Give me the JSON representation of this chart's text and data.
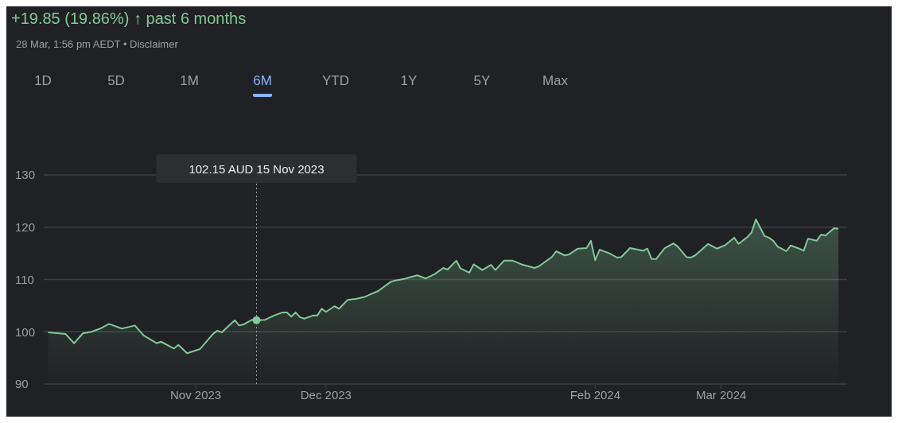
{
  "chart_data": {
    "type": "area",
    "title": "+19.85 (19.86%) ↑ past 6 months",
    "subtitle": "28 Mar, 1:56 pm AEDT • Disclaimer",
    "annotations": [
      "1D",
      "5D",
      "1M",
      "6M",
      "YTD",
      "1Y",
      "5Y",
      "Max"
    ],
    "ref_lines": [
      {
        "axis": "x",
        "value": "2023-11-15",
        "label": "102.15 AUD  15 Nov 2023",
        "line_style": "dotted",
        "color": "#9aa0a6"
      }
    ],
    "x": [
      "2023-09-28",
      "2023-10-02",
      "2023-10-04",
      "2023-10-06",
      "2023-10-08",
      "2023-10-10",
      "2023-10-12",
      "2023-10-15",
      "2023-10-18",
      "2023-10-20",
      "2023-10-23",
      "2023-10-24",
      "2023-10-27",
      "2023-10-28",
      "2023-10-30",
      "2023-11-02",
      "2023-11-05",
      "2023-11-06",
      "2023-11-07",
      "2023-11-10",
      "2023-11-11",
      "2023-11-12",
      "2023-11-14",
      "2023-11-15",
      "2023-11-17",
      "2023-11-19",
      "2023-11-21",
      "2023-11-22",
      "2023-11-23",
      "2023-11-24",
      "2023-11-25",
      "2023-11-26",
      "2023-11-28",
      "2023-11-29",
      "2023-11-30",
      "2023-12-01",
      "2023-12-03",
      "2023-12-04",
      "2023-12-06",
      "2023-12-08",
      "2023-12-10",
      "2023-12-13",
      "2023-12-16",
      "2023-12-17",
      "2023-12-19",
      "2023-12-22",
      "2023-12-24",
      "2023-12-26",
      "2023-12-28",
      "2023-12-29",
      "2023-12-31",
      "2024-01-01",
      "2024-01-03",
      "2024-01-04",
      "2024-01-06",
      "2024-01-08",
      "2024-01-09",
      "2024-01-11",
      "2024-01-13",
      "2024-01-15",
      "2024-01-18",
      "2024-01-19",
      "2024-01-22",
      "2024-01-23",
      "2024-01-25",
      "2024-01-26",
      "2024-01-28",
      "2024-01-30",
      "2024-01-31",
      "2024-02-01",
      "2024-02-02",
      "2024-02-04",
      "2024-02-06",
      "2024-02-07",
      "2024-02-09",
      "2024-02-12",
      "2024-02-13",
      "2024-02-14",
      "2024-02-15",
      "2024-02-17",
      "2024-02-19",
      "2024-02-20",
      "2024-02-22",
      "2024-02-23",
      "2024-02-24",
      "2024-02-27",
      "2024-02-29",
      "2024-03-02",
      "2024-03-04",
      "2024-03-05",
      "2024-03-07",
      "2024-03-08",
      "2024-03-09",
      "2024-03-11",
      "2024-03-12",
      "2024-03-13",
      "2024-03-14",
      "2024-03-16",
      "2024-03-17",
      "2024-03-19",
      "2024-03-20",
      "2024-03-21",
      "2024-03-23",
      "2024-03-24",
      "2024-03-25",
      "2024-03-27",
      "2024-03-28"
    ],
    "series": [
      {
        "color": "#81c995",
        "values": [
          99.9,
          99.6,
          97.8,
          99.7,
          100.0,
          100.6,
          101.5,
          100.6,
          101.2,
          99.3,
          97.8,
          98.1,
          96.8,
          97.5,
          95.9,
          96.7,
          99.6,
          100.2,
          99.9,
          102.2,
          101.2,
          101.4,
          102.3,
          102.2,
          102.3,
          103.1,
          103.7,
          103.7,
          102.9,
          103.7,
          102.8,
          102.5,
          103.1,
          103.1,
          104.4,
          103.8,
          104.9,
          104.4,
          106.1,
          106.3,
          106.7,
          107.8,
          109.6,
          109.8,
          110.1,
          110.8,
          110.2,
          111.0,
          112.2,
          111.9,
          113.6,
          112.1,
          111.3,
          112.9,
          111.8,
          112.8,
          111.8,
          113.6,
          113.6,
          112.9,
          112.2,
          112.5,
          114.3,
          115.4,
          114.6,
          114.8,
          115.9,
          116.0,
          117.4,
          113.7,
          115.7,
          115.1,
          114.2,
          114.3,
          116.0,
          115.5,
          115.9,
          113.9,
          113.9,
          116.0,
          116.9,
          116.3,
          114.3,
          114.2,
          114.6,
          116.8,
          115.9,
          116.6,
          118.0,
          116.8,
          118.1,
          119.0,
          121.5,
          118.3,
          118.0,
          117.4,
          116.3,
          115.4,
          116.5,
          115.9,
          115.5,
          117.8,
          117.4,
          118.6,
          118.4,
          119.8,
          119.7
        ]
      }
    ],
    "xlim": [
      "2023-09-27",
      "2024-03-30"
    ],
    "xticks": [
      {
        "value": "2023-11-01",
        "label": "Nov 2023"
      },
      {
        "value": "2023-12-01",
        "label": "Dec 2023"
      },
      {
        "value": "2024-02-01",
        "label": "Feb 2024"
      },
      {
        "value": "2024-03-01",
        "label": "Mar 2024"
      }
    ],
    "ylim": [
      90,
      130
    ],
    "yticks": [
      90,
      100,
      110,
      120,
      130
    ],
    "grid": "y",
    "marker": "none",
    "line_style": "solid"
  }
}
